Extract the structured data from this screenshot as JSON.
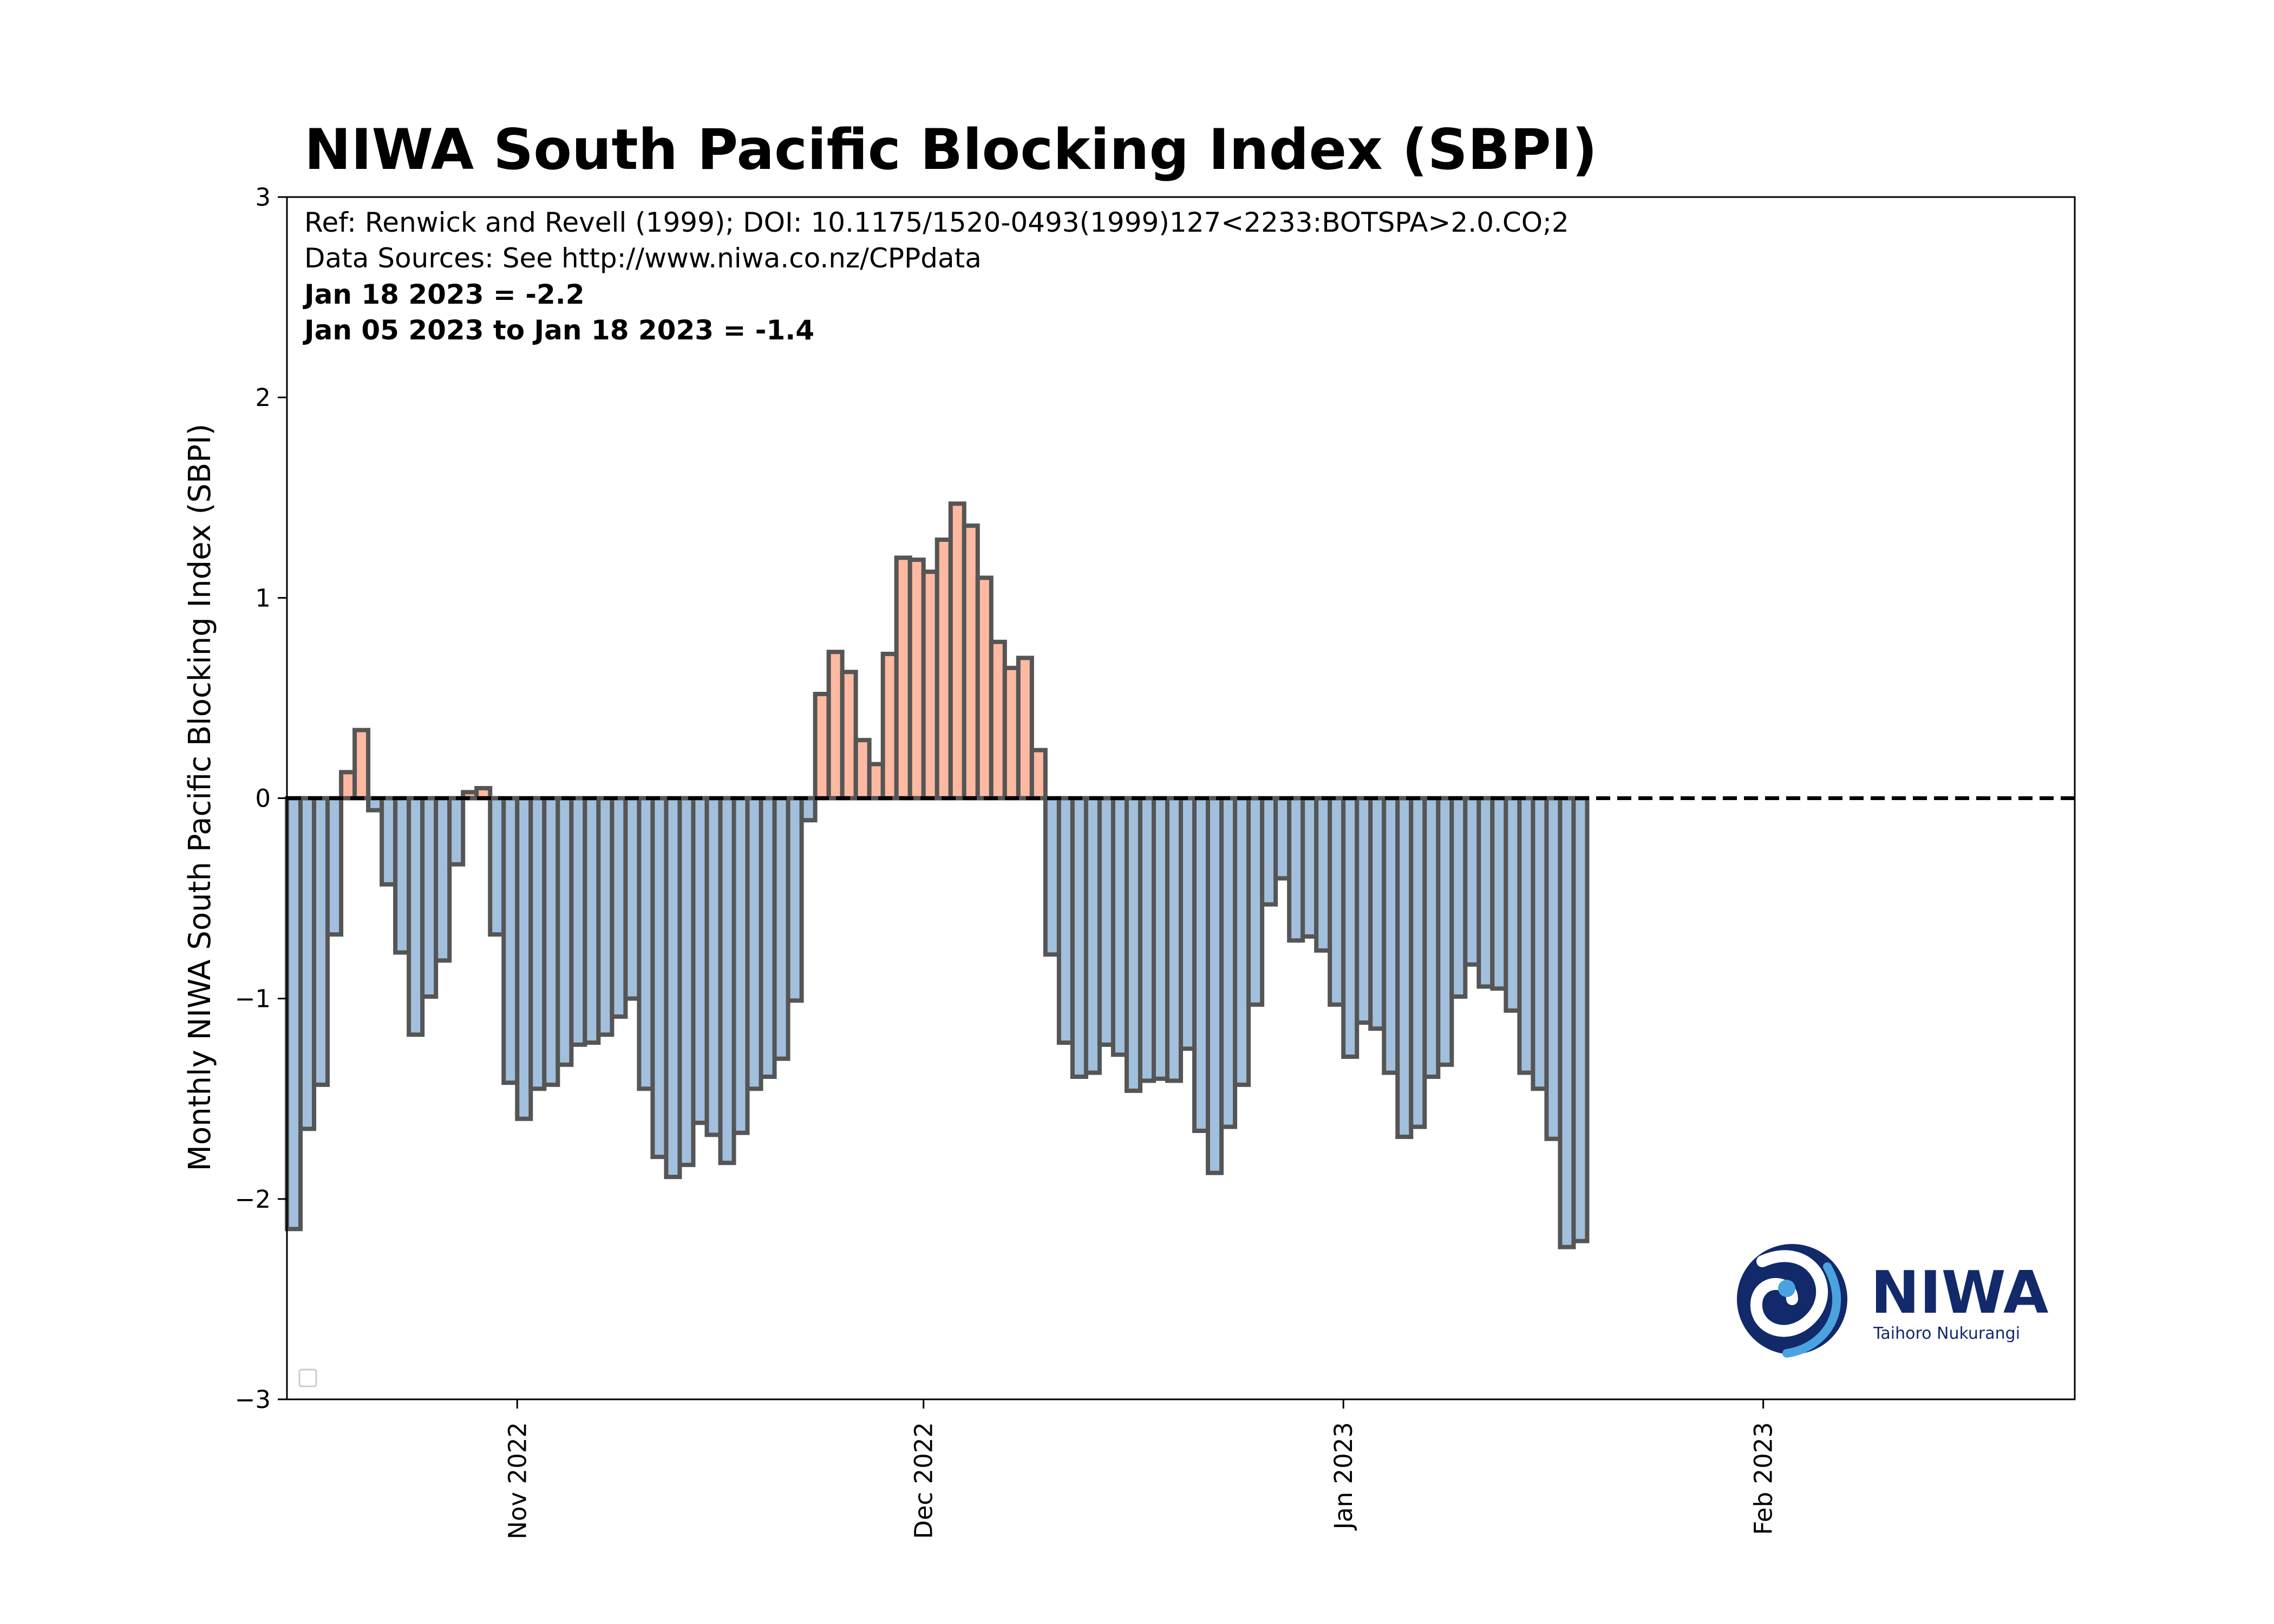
{
  "chart_data": {
    "type": "bar",
    "title": "NIWA South Pacific Blocking Index (SBPI)",
    "ylabel": "Monthly NIWA South Pacific Blocking Index (SBPI)",
    "xlabel": "",
    "ylim": [
      -3,
      3
    ],
    "yticks": [
      -3,
      -2,
      -1,
      0,
      1,
      2,
      3
    ],
    "yticklabels": [
      "−3",
      "−2",
      "−1",
      "0",
      "1",
      "2",
      "3"
    ],
    "xlim": [
      "2022-10-15",
      "2023-02-24"
    ],
    "xticks": [
      {
        "date": "2022-11-01",
        "label": "Nov 2022"
      },
      {
        "date": "2022-12-01",
        "label": "Dec 2022"
      },
      {
        "date": "2023-01-01",
        "label": "Jan 2023"
      },
      {
        "date": "2023-02-01",
        "label": "Feb 2023"
      }
    ],
    "start_date": "2022-10-15",
    "values": [
      -2.15,
      -1.65,
      -1.43,
      -0.68,
      0.13,
      0.34,
      -0.06,
      -0.43,
      -0.77,
      -1.18,
      -0.99,
      -0.81,
      -0.33,
      0.03,
      0.05,
      -0.68,
      -1.42,
      -1.6,
      -1.45,
      -1.43,
      -1.33,
      -1.23,
      -1.22,
      -1.18,
      -1.09,
      -1.0,
      -1.45,
      -1.79,
      -1.89,
      -1.83,
      -1.62,
      -1.68,
      -1.82,
      -1.67,
      -1.45,
      -1.39,
      -1.3,
      -1.01,
      -0.11,
      0.52,
      0.73,
      0.63,
      0.29,
      0.17,
      0.72,
      1.2,
      1.19,
      1.13,
      1.29,
      1.47,
      1.36,
      1.1,
      0.78,
      0.65,
      0.7,
      0.24,
      -0.78,
      -1.22,
      -1.39,
      -1.37,
      -1.23,
      -1.28,
      -1.46,
      -1.41,
      -1.4,
      -1.41,
      -1.25,
      -1.66,
      -1.87,
      -1.64,
      -1.43,
      -1.03,
      -0.53,
      -0.4,
      -0.71,
      -0.69,
      -0.76,
      -1.03,
      -1.29,
      -1.12,
      -1.15,
      -1.37,
      -1.69,
      -1.64,
      -1.39,
      -1.33,
      -0.99,
      -0.83,
      -0.94,
      -0.95,
      -1.06,
      -1.37,
      -1.45,
      -1.7,
      -2.24,
      -2.21
    ],
    "positive_color": "#fdb9a1",
    "negative_color": "#a2c0de",
    "edge_color": "#555555",
    "zero_line": "dashed",
    "annotations": [
      "Ref: Renwick and Revell (1999); DOI: 10.1175/1520-0493(1999)127<2233:BOTSPA>2.0.CO;2",
      "Data Sources: See http://www.niwa.co.nz/CPPdata",
      "Jan 18 2023  = -2.2",
      "Jan 05 2023 to Jan 18 2023 = -1.4"
    ],
    "legend": "bottom-left"
  },
  "logo": {
    "name": "NIWA",
    "tagline": "Taihoro Nukurangi",
    "color": "#12296a"
  }
}
